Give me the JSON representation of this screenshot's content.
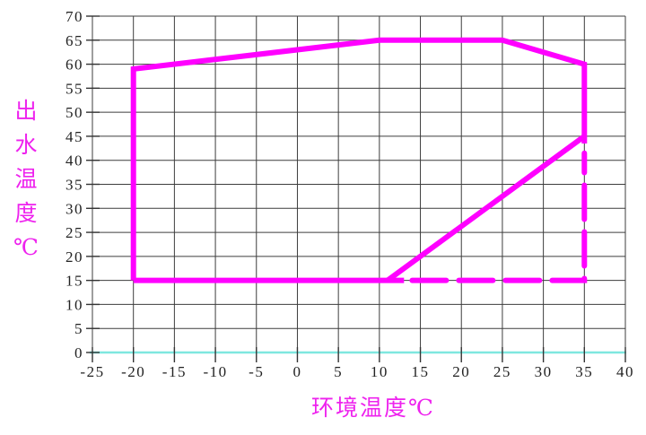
{
  "page": {
    "background": "#ffffff"
  },
  "chart_data": {
    "type": "line",
    "title": "",
    "xlabel": "环境温度℃",
    "ylabel": "出水温度℃",
    "xlim": [
      -25,
      40
    ],
    "ylim": [
      0,
      70
    ],
    "x_ticks": [
      -25,
      -20,
      -15,
      -10,
      -5,
      0,
      5,
      10,
      15,
      20,
      25,
      30,
      35,
      40
    ],
    "y_ticks": [
      0,
      5,
      10,
      15,
      20,
      25,
      30,
      35,
      40,
      45,
      50,
      55,
      60,
      65,
      70
    ],
    "grid": true,
    "legend": "none",
    "colors": {
      "line": "#ff00ff",
      "grid": "#3d3d3d",
      "zero_axis": "#7fe7df",
      "tick": "#333333",
      "tick_text": "#222222",
      "axis_title_text": "#ee22ee"
    },
    "series": [
      {
        "name": "operating-envelope-solid",
        "style": "solid",
        "points": [
          [
            -20,
            15
          ],
          [
            -20,
            59
          ],
          [
            10,
            65
          ],
          [
            25,
            65
          ],
          [
            35,
            60
          ],
          [
            35,
            43.5
          ]
        ]
      },
      {
        "name": "bottom-boundary-solid",
        "style": "solid",
        "points": [
          [
            -20,
            15
          ],
          [
            13,
            15
          ]
        ]
      },
      {
        "name": "max-outlet-diagonal-solid",
        "style": "solid",
        "points": [
          [
            11,
            15
          ],
          [
            35,
            45
          ]
        ]
      },
      {
        "name": "extended-range-dashed",
        "style": "dashed",
        "points": [
          [
            14,
            15
          ],
          [
            35,
            15
          ],
          [
            35,
            41.5
          ]
        ]
      }
    ]
  }
}
